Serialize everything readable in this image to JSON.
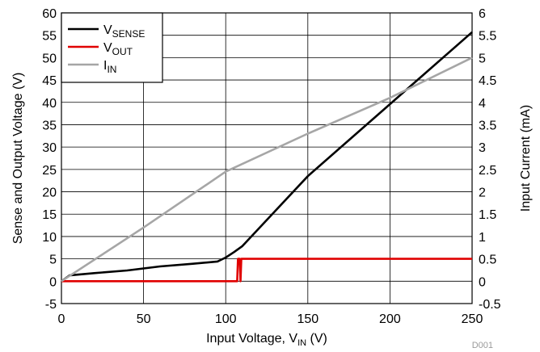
{
  "chart_data": {
    "type": "line",
    "xlabel": {
      "main": "Input Voltage, V",
      "sub": "IN",
      "unit": " (V)"
    },
    "ylabel_left": "Sense and Output Voltage (V)",
    "ylabel_right": "Input Current (mA)",
    "footer_code": "D001",
    "xlim": [
      0,
      250
    ],
    "ylim_left": [
      -5,
      60
    ],
    "ylim_right": [
      -0.5,
      6
    ],
    "grid": true,
    "legend_position": "top-left",
    "x_ticks": [
      "0",
      "50",
      "100",
      "150",
      "200",
      "250"
    ],
    "y_left_ticks": [
      "-5",
      "0",
      "5",
      "10",
      "15",
      "20",
      "25",
      "30",
      "35",
      "40",
      "45",
      "50",
      "55",
      "60"
    ],
    "y_right_ticks": [
      "-0.5",
      "0",
      "0.5",
      "1",
      "1.5",
      "2",
      "2.5",
      "3",
      "3.5",
      "4",
      "4.5",
      "5",
      "5.5",
      "6"
    ],
    "series": [
      {
        "name": "V",
        "name_sub": "SENSE",
        "color": "#000000",
        "axis": "left",
        "x": [
          0,
          5,
          20,
          40,
          60,
          80,
          95,
          100,
          105,
          110,
          150,
          200,
          250
        ],
        "y": [
          0,
          1.3,
          1.8,
          2.4,
          3.3,
          3.9,
          4.4,
          5.3,
          6.5,
          7.8,
          23.5,
          39.6,
          55.7
        ]
      },
      {
        "name": "V",
        "name_sub": "OUT",
        "color": "#e00000",
        "axis": "left",
        "x": [
          0,
          107,
          107.5,
          108.5,
          109,
          109.5,
          110.5,
          111,
          250
        ],
        "y": [
          0,
          0,
          5,
          5,
          0,
          5,
          5,
          5,
          5
        ]
      },
      {
        "name": "I",
        "name_sub": "IN",
        "color": "#a6a6a6",
        "axis": "right",
        "x": [
          0,
          50,
          100,
          150,
          200,
          250
        ],
        "y": [
          0,
          1.2,
          2.45,
          3.3,
          4.1,
          5.0
        ]
      }
    ]
  }
}
